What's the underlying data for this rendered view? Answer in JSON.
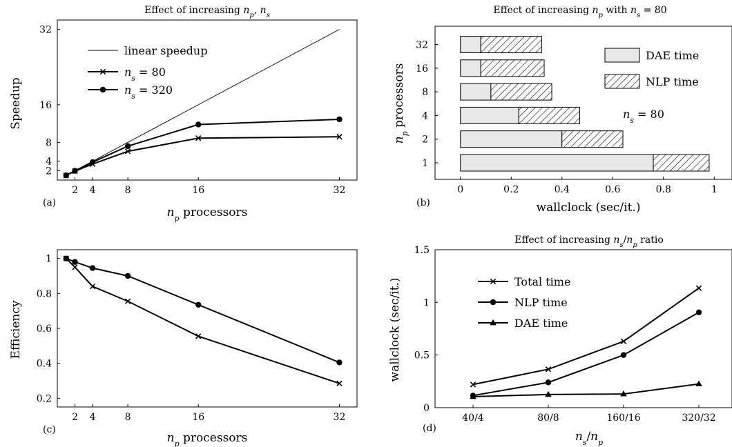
{
  "chart_data": [
    {
      "id": "a",
      "type": "line",
      "panel_label": "(a)",
      "title": "Effect of increasing n_p, n_s",
      "xlabel": "n_p processors",
      "ylabel": "Speedup",
      "xlim": [
        0,
        34
      ],
      "ylim": [
        0,
        34
      ],
      "xticks": [
        2,
        4,
        8,
        16,
        32
      ],
      "yticks": [
        2,
        4,
        8,
        16,
        32
      ],
      "legend_position": "top-left",
      "series": [
        {
          "name": "linear speedup",
          "marker": "none",
          "x": [
            1,
            32
          ],
          "y": [
            1,
            32
          ]
        },
        {
          "name": "n_s = 80",
          "marker": "x",
          "x": [
            1,
            2,
            4,
            8,
            16,
            32
          ],
          "y": [
            1,
            1.9,
            3.4,
            6.1,
            8.9,
            9.2
          ]
        },
        {
          "name": "n_s = 320",
          "marker": "circle",
          "x": [
            1,
            2,
            4,
            8,
            16,
            32
          ],
          "y": [
            1,
            1.95,
            3.8,
            7.2,
            11.8,
            12.9
          ]
        }
      ]
    },
    {
      "id": "b",
      "type": "bar",
      "orientation": "horizontal",
      "stacked": true,
      "panel_label": "(b)",
      "title": "Effect of increasing n_p with n_s = 80",
      "xlabel": "wallclock (sec/it.)",
      "ylabel": "n_p processors",
      "xlim": [
        -0.1,
        1.07
      ],
      "xticks": [
        0,
        0.2,
        0.4,
        0.6,
        0.8,
        1
      ],
      "categories": [
        "1",
        "2",
        "4",
        "8",
        "16",
        "32"
      ],
      "annotation": "n_s = 80",
      "legend_position": "top-right",
      "series": [
        {
          "name": "DAE time",
          "fill": "light-gray",
          "values": [
            0.76,
            0.4,
            0.23,
            0.12,
            0.08,
            0.08
          ]
        },
        {
          "name": "NLP time",
          "fill": "hatched",
          "values": [
            0.22,
            0.24,
            0.24,
            0.24,
            0.25,
            0.24
          ]
        }
      ]
    },
    {
      "id": "c",
      "type": "line",
      "panel_label": "(c)",
      "xlabel": "n_p processors",
      "ylabel": "Efficiency",
      "xlim": [
        0,
        34
      ],
      "ylim": [
        0.15,
        1.05
      ],
      "xticks": [
        2,
        4,
        8,
        16,
        32
      ],
      "yticks": [
        0.2,
        0.4,
        0.6,
        0.8,
        1
      ],
      "series": [
        {
          "marker": "x",
          "x": [
            1,
            2,
            4,
            8,
            16,
            32
          ],
          "y": [
            1,
            0.95,
            0.84,
            0.755,
            0.555,
            0.285
          ]
        },
        {
          "marker": "circle",
          "x": [
            1,
            2,
            4,
            8,
            16,
            32
          ],
          "y": [
            1,
            0.98,
            0.945,
            0.9,
            0.735,
            0.405
          ]
        }
      ]
    },
    {
      "id": "d",
      "type": "line",
      "panel_label": "(d)",
      "title": "Effect of increasing n_s/n_p ratio",
      "xlabel": "n_s/n_p",
      "ylabel": "wallclock (sec/it.)",
      "ylim": [
        0,
        1.5
      ],
      "yticks": [
        0,
        0.5,
        1,
        1.5
      ],
      "categories": [
        "40/4",
        "80/8",
        "160/16",
        "320/32"
      ],
      "legend_position": "top-left",
      "series": [
        {
          "name": "Total time",
          "marker": "x",
          "values": [
            0.22,
            0.365,
            0.63,
            1.135
          ]
        },
        {
          "name": "NLP time",
          "marker": "circle",
          "values": [
            0.115,
            0.24,
            0.5,
            0.905
          ]
        },
        {
          "name": "DAE time",
          "marker": "triangle",
          "values": [
            0.105,
            0.125,
            0.13,
            0.225
          ]
        }
      ]
    }
  ]
}
